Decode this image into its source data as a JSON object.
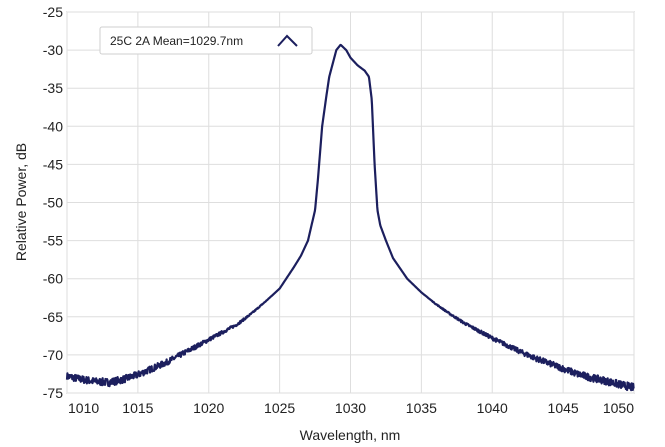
{
  "chart_data": {
    "type": "line",
    "xlabel": "Wavelength, nm",
    "ylabel": "Relative Power, dB",
    "xlim": [
      1010,
      1050
    ],
    "ylim": [
      -75,
      -25
    ],
    "xticks": [
      1010,
      1015,
      1020,
      1025,
      1030,
      1035,
      1040,
      1045,
      1050
    ],
    "yticks": [
      -25,
      -30,
      -35,
      -40,
      -45,
      -50,
      -55,
      -60,
      -65,
      -70,
      -75
    ],
    "grid": true,
    "legend_position": "top-left",
    "line_color": "#1c1f5e",
    "series": [
      {
        "name": "25C 2A Mean=1029.7nm",
        "points": [
          [
            1010,
            -72.8
          ],
          [
            1011,
            -73.2
          ],
          [
            1012,
            -73.5
          ],
          [
            1013,
            -73.6
          ],
          [
            1014,
            -73.2
          ],
          [
            1015,
            -72.6
          ],
          [
            1016,
            -71.8
          ],
          [
            1017,
            -71.0
          ],
          [
            1018,
            -70.0
          ],
          [
            1019,
            -69.0
          ],
          [
            1020,
            -68.0
          ],
          [
            1021,
            -67.0
          ],
          [
            1022,
            -66.0
          ],
          [
            1023,
            -64.6
          ],
          [
            1024,
            -63.0
          ],
          [
            1025,
            -61.3
          ],
          [
            1026,
            -58.5
          ],
          [
            1026.5,
            -57.0
          ],
          [
            1027,
            -55.0
          ],
          [
            1027.5,
            -51.0
          ],
          [
            1027.7,
            -47.0
          ],
          [
            1028,
            -40.0
          ],
          [
            1028.3,
            -36.0
          ],
          [
            1028.5,
            -33.5
          ],
          [
            1029,
            -30.0
          ],
          [
            1029.3,
            -29.3
          ],
          [
            1029.7,
            -30.0
          ],
          [
            1030,
            -31.0
          ],
          [
            1030.5,
            -32.0
          ],
          [
            1031,
            -32.7
          ],
          [
            1031.3,
            -33.5
          ],
          [
            1031.5,
            -36.5
          ],
          [
            1031.7,
            -45.0
          ],
          [
            1031.9,
            -51.0
          ],
          [
            1032.1,
            -53.0
          ],
          [
            1032.5,
            -55.0
          ],
          [
            1033,
            -57.3
          ],
          [
            1034,
            -60.0
          ],
          [
            1035,
            -61.8
          ],
          [
            1036,
            -63.3
          ],
          [
            1037,
            -64.6
          ],
          [
            1038,
            -65.8
          ],
          [
            1039,
            -66.8
          ],
          [
            1040,
            -67.8
          ],
          [
            1041,
            -68.7
          ],
          [
            1042,
            -69.6
          ],
          [
            1043,
            -70.4
          ],
          [
            1044,
            -71.1
          ],
          [
            1045,
            -71.8
          ],
          [
            1046,
            -72.5
          ],
          [
            1047,
            -73.0
          ],
          [
            1048,
            -73.4
          ],
          [
            1049,
            -73.9
          ],
          [
            1050,
            -74.3
          ]
        ]
      }
    ]
  }
}
